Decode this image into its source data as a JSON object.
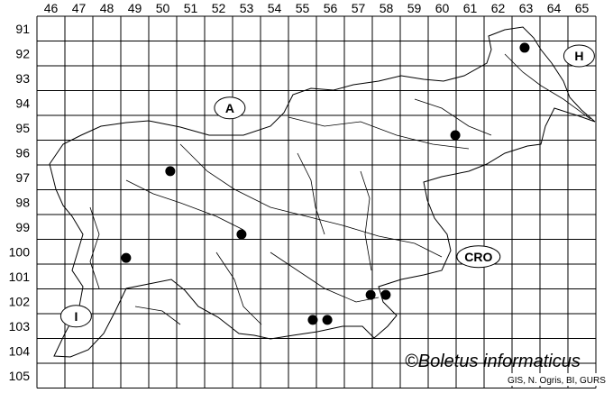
{
  "map": {
    "columns": [
      "46",
      "47",
      "48",
      "49",
      "50",
      "51",
      "52",
      "53",
      "54",
      "55",
      "56",
      "57",
      "58",
      "59",
      "60",
      "61",
      "62",
      "63",
      "64",
      "65"
    ],
    "rows": [
      "91",
      "92",
      "93",
      "94",
      "95",
      "96",
      "97",
      "98",
      "99",
      "100",
      "101",
      "102",
      "103",
      "104",
      "105"
    ],
    "region_labels": [
      {
        "text": "A",
        "col": 52.9,
        "row": 94.7
      },
      {
        "text": "H",
        "col": 65.4,
        "row": 92.6
      },
      {
        "text": "CRO",
        "col": 61.8,
        "row": 100.7
      },
      {
        "text": "I",
        "col": 47.4,
        "row": 103.1
      }
    ],
    "records": [
      {
        "col": 63.45,
        "row": 92.27
      },
      {
        "col": 60.97,
        "row": 95.8
      },
      {
        "col": 50.77,
        "row": 97.25
      },
      {
        "col": 53.32,
        "row": 99.8
      },
      {
        "col": 49.19,
        "row": 100.75
      },
      {
        "col": 57.94,
        "row": 102.24
      },
      {
        "col": 58.48,
        "row": 102.24
      },
      {
        "col": 55.87,
        "row": 103.25
      },
      {
        "col": 56.39,
        "row": 103.25
      }
    ],
    "record_color": "#000000",
    "copyright": "©Boletus informaticus",
    "credits": "GIS, N. Ogris, BI, GURS"
  }
}
